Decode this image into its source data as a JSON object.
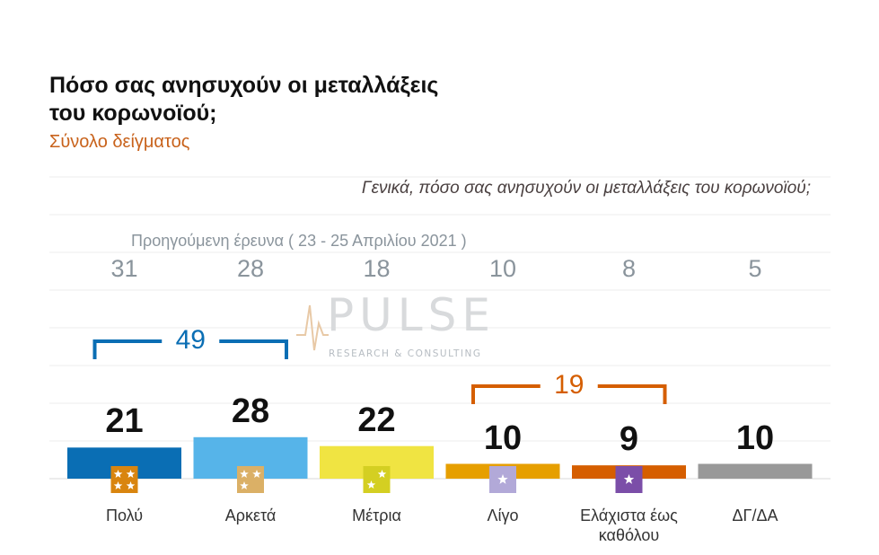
{
  "title": "Πόσο σας ανησυχούν οι μεταλλάξεις του κορωνοϊού;",
  "subtitle": "Σύνολο δείγματος",
  "question": "Γενικά, πόσο σας ανησυχούν οι μεταλλάξεις του κορωνοϊού;",
  "watermark": {
    "brand": "PULSE",
    "tagline": "RESEARCH & CONSULTING"
  },
  "chart_data": {
    "type": "bar",
    "categories": [
      "Πολύ",
      "Αρκετά",
      "Μέτρια",
      "Λίγο",
      "Ελάχιστα έως καθόλου",
      "ΔΓ/ΔΑ"
    ],
    "series": [
      {
        "values": [
          21,
          28,
          22,
          10,
          9,
          10
        ]
      },
      {
        "name": "Προηγούμενη έρευνα ( 23 - 25 Απριλίου 2021 )",
        "values": [
          31,
          28,
          18,
          10,
          8,
          5
        ]
      }
    ],
    "previous_label": "Προηγούμενη έρευνα  ( 23 - 25 Απριλίου 2021 )",
    "colors": [
      "#0a6eb4",
      "#56b4e9",
      "#f0e442",
      "#e69f00",
      "#d55e00",
      "#999999"
    ],
    "icon_colors": [
      "#d9850f",
      "#dbb066",
      "#d4cf22",
      "#b2a9d8",
      "#7b4ea8",
      ""
    ],
    "icon_stars": [
      4,
      3,
      2,
      1,
      1,
      0
    ],
    "groupings": [
      {
        "value": "49",
        "from": 0,
        "to": 1,
        "color": "#0a6eb4"
      },
      {
        "value": "19",
        "from": 3,
        "to": 4,
        "color": "#d55e00"
      }
    ],
    "grid": true
  }
}
